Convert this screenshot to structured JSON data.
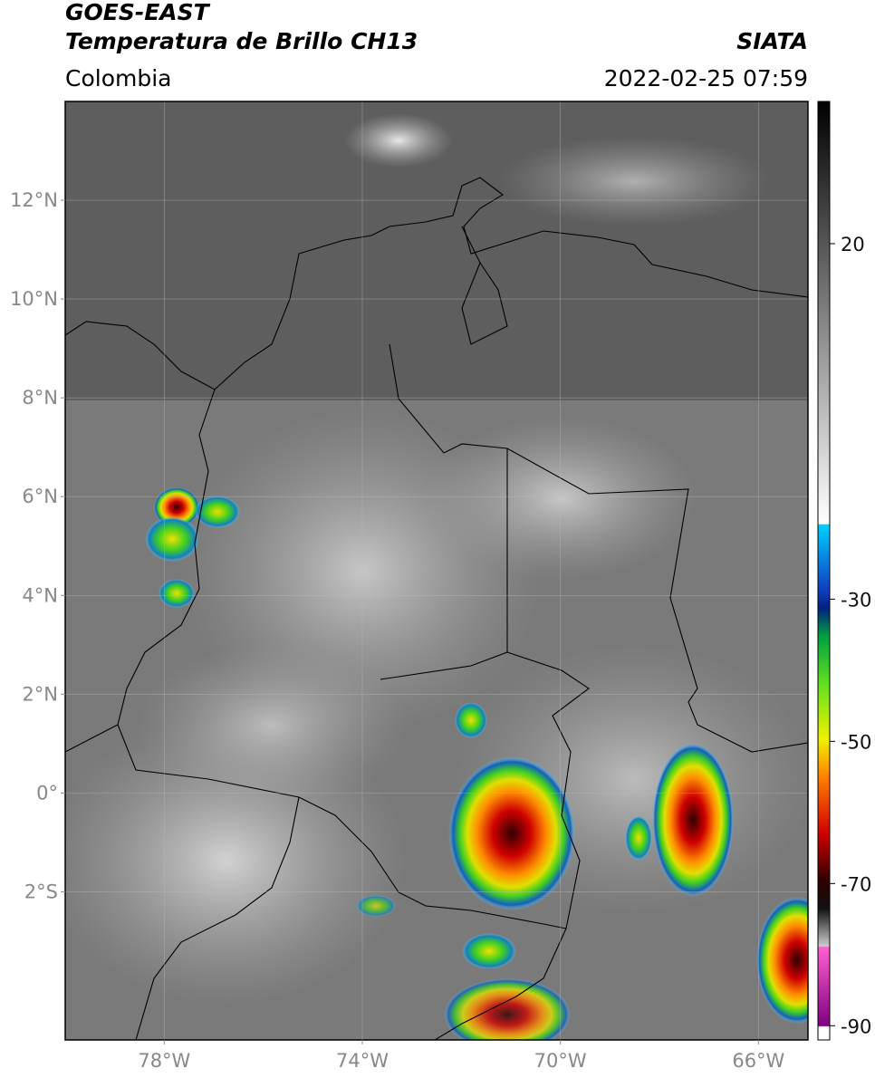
{
  "header": {
    "title": "GOES-EAST",
    "subtitle": "Temperatura de Brillo CH13",
    "source": "SIATA",
    "region": "Colombia",
    "datetime": "2022-02-25 07:59"
  },
  "map": {
    "xlim": [
      -80,
      -65
    ],
    "ylim": [
      -5,
      14
    ],
    "xticks": [
      {
        "value": -78,
        "label": "78°W"
      },
      {
        "value": -74,
        "label": "74°W"
      },
      {
        "value": -70,
        "label": "70°W"
      },
      {
        "value": -66,
        "label": "66°W"
      }
    ],
    "yticks": [
      {
        "value": 12,
        "label": "12°N"
      },
      {
        "value": 10,
        "label": "10°N"
      },
      {
        "value": 8,
        "label": "8°N"
      },
      {
        "value": 6,
        "label": "6°N"
      },
      {
        "value": 4,
        "label": "4°N"
      },
      {
        "value": 2,
        "label": "2°N"
      },
      {
        "value": 0,
        "label": "0°"
      },
      {
        "value": -2,
        "label": "2°S"
      }
    ],
    "grid": true
  },
  "colorbar": {
    "lim": [
      -92,
      40
    ],
    "ticks": [
      20,
      -30,
      -50,
      -70,
      -90
    ]
  }
}
